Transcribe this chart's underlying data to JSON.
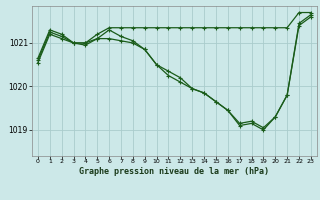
{
  "background_color": "#cce8e8",
  "grid_color": "#aacccc",
  "line_color": "#1a5c1a",
  "title": "Graphe pression niveau de la mer (hPa)",
  "xlim": [
    -0.5,
    23.5
  ],
  "ylim": [
    1018.4,
    1021.85
  ],
  "yticks": [
    1019,
    1020,
    1021
  ],
  "xticks": [
    0,
    1,
    2,
    3,
    4,
    5,
    6,
    7,
    8,
    9,
    10,
    11,
    12,
    13,
    14,
    15,
    16,
    17,
    18,
    19,
    20,
    21,
    22,
    23
  ],
  "line1_x": [
    0,
    1,
    2,
    3,
    4,
    5,
    6,
    7,
    8,
    9,
    10,
    11,
    12,
    13,
    14,
    15,
    16,
    17,
    18,
    19,
    20,
    21,
    22,
    23
  ],
  "line1_y": [
    1020.65,
    1021.3,
    1021.2,
    1021.0,
    1021.0,
    1021.2,
    1021.35,
    1021.35,
    1021.35,
    1021.35,
    1021.35,
    1021.35,
    1021.35,
    1021.35,
    1021.35,
    1021.35,
    1021.35,
    1021.35,
    1021.35,
    1021.35,
    1021.35,
    1021.35,
    1021.7,
    1021.7
  ],
  "line2_x": [
    0,
    1,
    2,
    3,
    4,
    5,
    6,
    7,
    8,
    9,
    10,
    11,
    12,
    13,
    14,
    15,
    16,
    17,
    18,
    19,
    20,
    21,
    22,
    23
  ],
  "line2_y": [
    1020.55,
    1021.2,
    1021.1,
    1021.0,
    1020.95,
    1021.1,
    1021.3,
    1021.15,
    1021.05,
    1020.85,
    1020.5,
    1020.25,
    1020.1,
    1019.95,
    1019.85,
    1019.65,
    1019.45,
    1019.1,
    1019.15,
    1019.0,
    1019.3,
    1019.8,
    1021.45,
    1021.65
  ],
  "line3_x": [
    0,
    1,
    2,
    3,
    4,
    5,
    6,
    7,
    8,
    9,
    10,
    11,
    12,
    13,
    14,
    15,
    16,
    17,
    18,
    19,
    20,
    21,
    22,
    23
  ],
  "line3_y": [
    1020.6,
    1021.25,
    1021.15,
    1021.0,
    1021.0,
    1021.1,
    1021.1,
    1021.05,
    1021.0,
    1020.85,
    1020.5,
    1020.35,
    1020.2,
    1019.95,
    1019.85,
    1019.65,
    1019.45,
    1019.15,
    1019.2,
    1019.05,
    1019.3,
    1019.8,
    1021.4,
    1021.6
  ]
}
